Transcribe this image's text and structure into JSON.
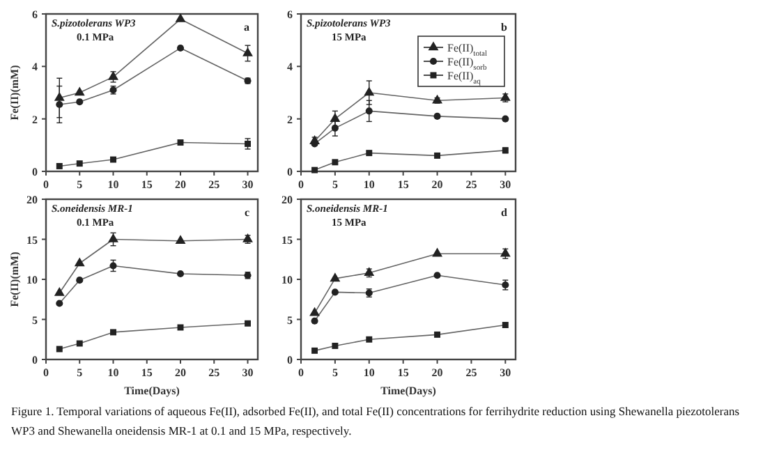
{
  "chart_data": [
    {
      "type": "line",
      "title": "S.pizotolerans WP3",
      "subtitle": "0.1 MPa",
      "ylabel": "Fe(II)(mM)",
      "annotations": [
        "a"
      ],
      "x": [
        2,
        5,
        10,
        20,
        30
      ],
      "xlim": [
        0,
        31.5
      ],
      "xticks": [
        0,
        5,
        10,
        15,
        20,
        25,
        30
      ],
      "ylim": [
        0,
        6
      ],
      "yticks": [
        0,
        2,
        4,
        6
      ],
      "grid": false,
      "legend": false,
      "line_style": "solid",
      "series": [
        {
          "color": "#222222",
          "marker": "triangle",
          "values": [
            2.8,
            3.0,
            3.6,
            5.8,
            4.5
          ],
          "errors": [
            0.75,
            null,
            0.2,
            null,
            0.3
          ]
        },
        {
          "color": "#222222",
          "marker": "circle",
          "values": [
            2.55,
            2.65,
            3.1,
            4.7,
            3.45
          ],
          "errors": [
            0.7,
            null,
            0.15,
            null,
            0.1
          ]
        },
        {
          "color": "#222222",
          "marker": "square",
          "values": [
            0.2,
            0.3,
            0.45,
            1.1,
            1.05
          ],
          "errors": [
            null,
            null,
            null,
            null,
            0.2
          ]
        }
      ]
    },
    {
      "type": "line",
      "title": "S.pizotolerans WP3",
      "subtitle": "15 MPa",
      "annotations": [
        "b"
      ],
      "x": [
        2,
        5,
        10,
        20,
        30
      ],
      "xlim": [
        0,
        31.5
      ],
      "xticks": [
        0,
        5,
        10,
        15,
        20,
        25,
        30
      ],
      "ylim": [
        0,
        6
      ],
      "yticks": [
        0,
        2,
        4,
        6
      ],
      "grid": false,
      "legend": "top right",
      "line_style": "solid",
      "series": [
        {
          "name": "Fe(II)$_{total}$",
          "color": "#222222",
          "marker": "triangle",
          "values": [
            1.15,
            2.0,
            3.0,
            2.7,
            2.8
          ],
          "errors": [
            0.15,
            0.3,
            0.45,
            0.1,
            0.15
          ]
        },
        {
          "name": "Fe(II)$_{sorb}$",
          "color": "#222222",
          "marker": "circle",
          "values": [
            1.05,
            1.65,
            2.3,
            2.1,
            2.0
          ],
          "errors": [
            null,
            0.3,
            0.4,
            null,
            null
          ]
        },
        {
          "name": "Fe(II)$_{aq}$",
          "color": "#222222",
          "marker": "square",
          "values": [
            0.05,
            0.35,
            0.7,
            0.6,
            0.8
          ],
          "errors": [
            null,
            null,
            null,
            null,
            0.1
          ]
        }
      ]
    },
    {
      "type": "line",
      "title": "S.oneidensis MR-1",
      "subtitle": "0.1 MPa",
      "xlabel": "Time(Days)",
      "ylabel": "Fe(II)(mM)",
      "annotations": [
        "c"
      ],
      "x": [
        2,
        5,
        10,
        20,
        30
      ],
      "xlim": [
        0,
        31.5
      ],
      "xticks": [
        0,
        5,
        10,
        15,
        20,
        25,
        30
      ],
      "ylim": [
        0,
        20
      ],
      "yticks": [
        0,
        5,
        10,
        15,
        20
      ],
      "grid": false,
      "legend": false,
      "line_style": "solid",
      "series": [
        {
          "color": "#222222",
          "marker": "triangle",
          "values": [
            8.3,
            12.0,
            15.0,
            14.8,
            15.0
          ],
          "errors": [
            null,
            null,
            0.8,
            null,
            0.5
          ]
        },
        {
          "color": "#222222",
          "marker": "circle",
          "values": [
            7.0,
            9.9,
            11.7,
            10.7,
            10.5
          ],
          "errors": [
            null,
            null,
            0.7,
            null,
            0.4
          ]
        },
        {
          "color": "#222222",
          "marker": "square",
          "values": [
            1.3,
            2.0,
            3.4,
            4.0,
            4.5
          ],
          "errors": [
            null,
            null,
            null,
            null,
            null
          ]
        }
      ]
    },
    {
      "type": "line",
      "title": "S.oneidensis MR-1",
      "subtitle": "15 MPa",
      "xlabel": "Time(Days)",
      "annotations": [
        "d",
        "Figure 1. Temporal variations of aqueous Fe(II), adsorbed Fe(II), and total Fe(II) concentrations for ferrihydrite reduction using Shewanella piezotolerans WP3 and Shewanella oneidensis MR-1 at 0.1 and 15 MPa, respectively."
      ],
      "x": [
        2,
        5,
        10,
        20,
        30
      ],
      "xlim": [
        0,
        31.5
      ],
      "xticks": [
        0,
        5,
        10,
        15,
        20,
        25,
        30
      ],
      "ylim": [
        0,
        20
      ],
      "yticks": [
        0,
        5,
        10,
        15,
        20
      ],
      "grid": false,
      "legend": false,
      "line_style": "solid",
      "series": [
        {
          "color": "#222222",
          "marker": "triangle",
          "values": [
            5.8,
            10.1,
            10.8,
            13.2,
            13.2
          ],
          "errors": [
            null,
            null,
            0.5,
            null,
            0.6
          ]
        },
        {
          "color": "#222222",
          "marker": "circle",
          "values": [
            4.8,
            8.4,
            8.3,
            10.5,
            9.3
          ],
          "errors": [
            null,
            null,
            0.5,
            null,
            0.6
          ]
        },
        {
          "color": "#222222",
          "marker": "square",
          "values": [
            1.1,
            1.7,
            2.5,
            3.1,
            4.3
          ],
          "errors": [
            null,
            null,
            null,
            null,
            null
          ]
        }
      ]
    }
  ]
}
